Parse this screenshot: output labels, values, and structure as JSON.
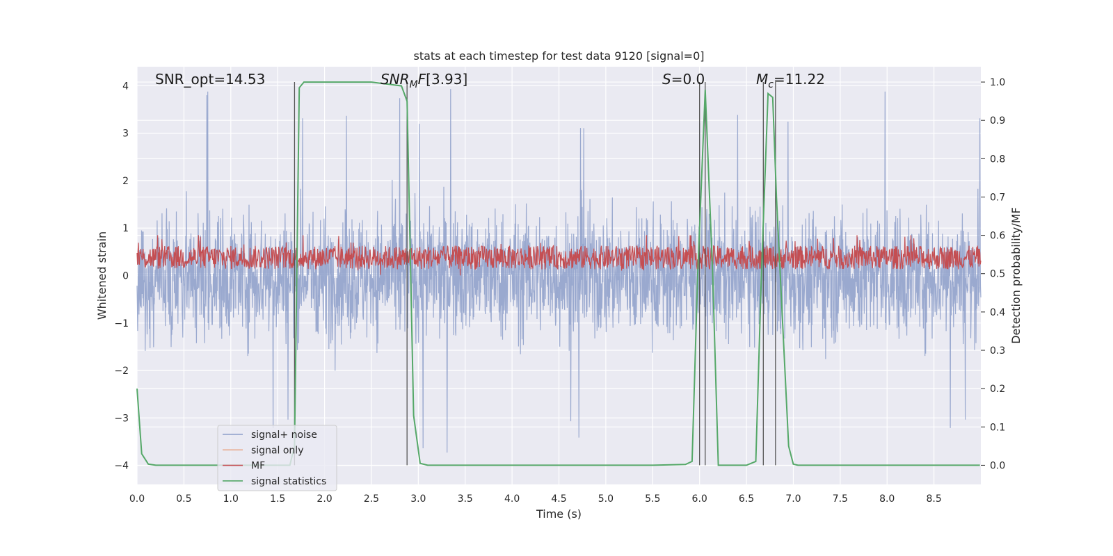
{
  "chart_data": {
    "type": "line",
    "title": "stats at each timestep for test data 9120 [signal=0]",
    "xlabel": "Time (s)",
    "ylabel_left": "Whitened strain",
    "ylabel_right": "Detection probability/MF",
    "xlim": [
      0.0,
      9.0
    ],
    "ylim_left": [
      -4.4,
      4.4
    ],
    "ylim_right": [
      -0.05,
      1.04
    ],
    "xticks": [
      "0.0",
      "0.5",
      "1.0",
      "1.5",
      "2.0",
      "2.5",
      "3.0",
      "3.5",
      "4.0",
      "4.5",
      "5.0",
      "5.5",
      "6.0",
      "6.5",
      "7.0",
      "7.5",
      "8.0",
      "8.5"
    ],
    "xtick_values": [
      0.0,
      0.5,
      1.0,
      1.5,
      2.0,
      2.5,
      3.0,
      3.5,
      4.0,
      4.5,
      5.0,
      5.5,
      6.0,
      6.5,
      7.0,
      7.5,
      8.0,
      8.5
    ],
    "yticks_left": [
      "−4",
      "−3",
      "−2",
      "−1",
      "0",
      "1",
      "2",
      "3",
      "4"
    ],
    "ytick_left_values": [
      -4,
      -3,
      -2,
      -1,
      0,
      1,
      2,
      3,
      4
    ],
    "yticks_right": [
      "0.0",
      "0.1",
      "0.2",
      "0.3",
      "0.4",
      "0.5",
      "0.6",
      "0.7",
      "0.8",
      "0.9",
      "1.0"
    ],
    "ytick_right_values": [
      0.0,
      0.1,
      0.2,
      0.3,
      0.4,
      0.5,
      0.6,
      0.7,
      0.8,
      0.9,
      1.0
    ],
    "annotations": {
      "snr_opt": "SNR_opt=14.53",
      "snr_mf": "[3.93]",
      "s_value": "=0.0",
      "mc_value": "=11.22"
    },
    "legend": [
      "signal+ noise",
      "signal only",
      "MF",
      "signal statistics"
    ],
    "series": [
      {
        "name": "signal+ noise",
        "description_axis": "left",
        "envelope_approx": {
          "typical_min": -2.0,
          "typical_max": 2.3,
          "peak_max": 4.0,
          "peak_min": -3.9
        }
      },
      {
        "name": "MF",
        "description_axis": "left",
        "envelope_approx": {
          "typical_min": 0.1,
          "typical_max": 0.75
        }
      },
      {
        "name": "signal statistics",
        "axis": "right",
        "x": [
          0.0,
          0.05,
          0.12,
          0.2,
          0.5,
          1.0,
          1.5,
          1.63,
          1.68,
          1.73,
          1.78,
          1.84,
          2.0,
          2.5,
          2.82,
          2.88,
          2.95,
          3.02,
          3.1,
          3.5,
          4.0,
          4.5,
          5.0,
          5.5,
          5.85,
          5.92,
          5.98,
          6.06,
          6.14,
          6.2,
          6.3,
          6.5,
          6.6,
          6.66,
          6.73,
          6.78,
          6.82,
          6.88,
          6.95,
          7.0,
          7.05,
          7.5,
          8.0,
          8.5,
          8.99
        ],
        "y": [
          0.2,
          0.03,
          0.003,
          0.0,
          0.0,
          0.0,
          0.0,
          0.0,
          0.05,
          0.985,
          1.0,
          1.0,
          1.0,
          1.0,
          0.99,
          0.95,
          0.13,
          0.005,
          0.0,
          0.0,
          0.0,
          0.0,
          0.0,
          0.0,
          0.002,
          0.01,
          0.5,
          0.98,
          0.5,
          0.0,
          0.0,
          0.0,
          0.01,
          0.5,
          0.97,
          0.96,
          0.7,
          0.4,
          0.05,
          0.003,
          0.0,
          0.0,
          0.0,
          0.0,
          0.0
        ]
      }
    ],
    "vlines": [
      1.68,
      2.88,
      6.0,
      6.06,
      6.68,
      6.81
    ]
  }
}
